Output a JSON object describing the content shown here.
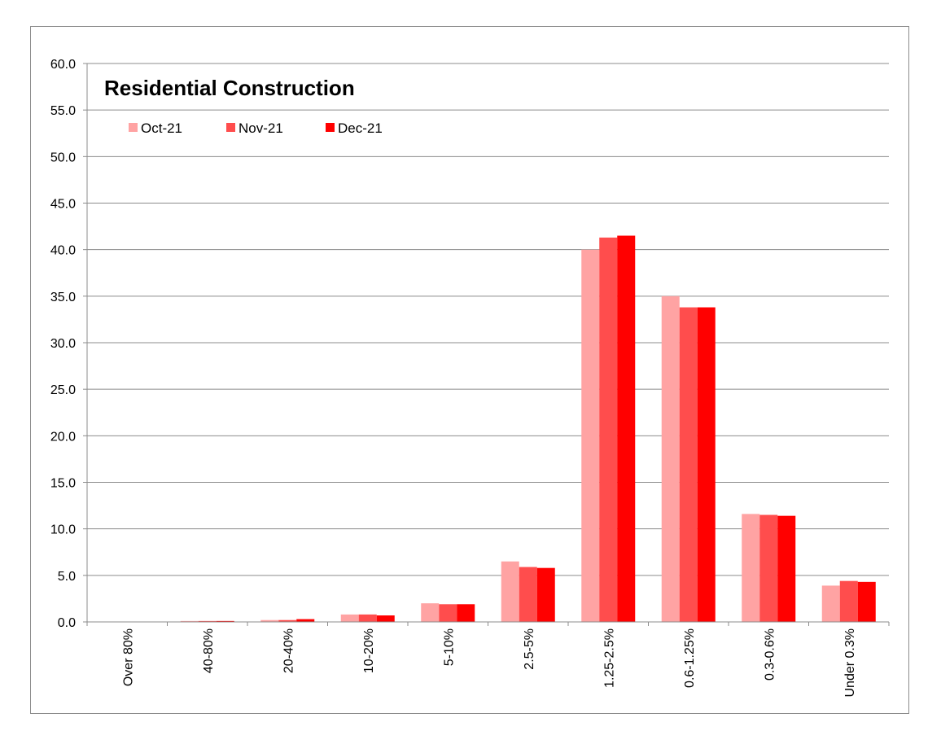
{
  "chart_data": {
    "type": "bar",
    "title": "Residential Construction",
    "xlabel": "",
    "ylabel": "",
    "ylim": [
      0,
      60
    ],
    "yticks": [
      "0.0",
      "5.0",
      "10.0",
      "15.0",
      "20.0",
      "25.0",
      "30.0",
      "35.0",
      "40.0",
      "45.0",
      "50.0",
      "55.0",
      "60.0"
    ],
    "grid": true,
    "legend_position": "top-left",
    "categories": [
      "Over 80%",
      "40-80%",
      "20-40%",
      "10-20%",
      "5-10%",
      "2.5-5%",
      "1.25-2.5%",
      "0.6-1.25%",
      "0.3-0.6%",
      "Under 0.3%"
    ],
    "series": [
      {
        "name": "Oct-21",
        "color": "#FFA3A3",
        "values": [
          0.0,
          0.1,
          0.2,
          0.8,
          2.0,
          6.5,
          40.0,
          35.0,
          11.6,
          3.9
        ]
      },
      {
        "name": "Nov-21",
        "color": "#FF4D4D",
        "values": [
          0.0,
          0.1,
          0.2,
          0.8,
          1.9,
          5.9,
          41.3,
          33.8,
          11.5,
          4.4
        ]
      },
      {
        "name": "Dec-21",
        "color": "#FF0000",
        "values": [
          0.0,
          0.1,
          0.3,
          0.7,
          1.9,
          5.8,
          41.5,
          33.8,
          11.4,
          4.3
        ]
      }
    ]
  }
}
